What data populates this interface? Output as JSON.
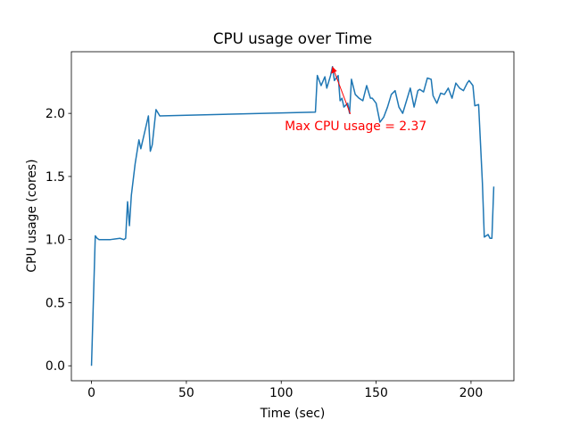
{
  "chart_data": {
    "type": "line",
    "title": "CPU usage over Time",
    "x_label": "Time (sec)",
    "y_label": "CPU usage (cores)",
    "x": [
      0,
      2,
      3,
      4,
      10,
      15,
      17,
      18,
      19,
      20,
      21,
      23,
      25,
      26,
      28,
      30,
      31,
      32,
      34,
      36,
      118,
      119,
      121,
      123,
      124,
      126,
      127,
      128,
      130,
      131,
      132,
      133,
      135,
      136,
      137,
      139,
      141,
      143,
      145,
      147,
      148,
      150,
      152,
      154,
      156,
      158,
      160,
      162,
      164,
      166,
      168,
      170,
      172,
      173,
      175,
      177,
      179,
      180,
      182,
      184,
      186,
      188,
      190,
      192,
      194,
      196,
      198,
      199,
      201,
      202,
      204,
      206,
      207,
      209,
      210,
      211,
      212
    ],
    "series": [
      {
        "name": "CPU usage",
        "color": "#1f77b4",
        "values": [
          0,
          1.03,
          1.01,
          1.0,
          1.0,
          1.01,
          1.0,
          1.01,
          1.3,
          1.11,
          1.35,
          1.6,
          1.79,
          1.72,
          1.85,
          1.98,
          1.7,
          1.75,
          2.03,
          1.98,
          2.01,
          2.3,
          2.22,
          2.29,
          2.2,
          2.3,
          2.37,
          2.26,
          2.3,
          2.1,
          2.12,
          2.05,
          2.08,
          2.0,
          2.27,
          2.15,
          2.12,
          2.1,
          2.22,
          2.12,
          2.12,
          2.08,
          1.93,
          1.97,
          2.05,
          2.15,
          2.18,
          2.05,
          2.0,
          2.1,
          2.2,
          2.05,
          2.18,
          2.19,
          2.17,
          2.28,
          2.27,
          2.14,
          2.08,
          2.16,
          2.15,
          2.2,
          2.12,
          2.24,
          2.2,
          2.18,
          2.24,
          2.26,
          2.22,
          2.06,
          2.07,
          1.45,
          1.02,
          1.04,
          1.01,
          1.01,
          1.42
        ]
      }
    ],
    "annotation": {
      "text": "Max CPU usage = 2.37",
      "x": 127,
      "y": 2.37,
      "color": "red"
    },
    "xlim": [
      -10.6,
      222.6
    ],
    "ylim": [
      -0.1185,
      2.4885
    ],
    "xticks": [
      0,
      50,
      100,
      150,
      200
    ],
    "yticks": [
      {
        "value": 0,
        "label": "0.0"
      },
      {
        "value": 0.5,
        "label": "0.5"
      },
      {
        "value": 1,
        "label": "1.0"
      },
      {
        "value": 1.5,
        "label": "1.5"
      },
      {
        "value": 2,
        "label": "2.0"
      }
    ],
    "grid": false
  }
}
